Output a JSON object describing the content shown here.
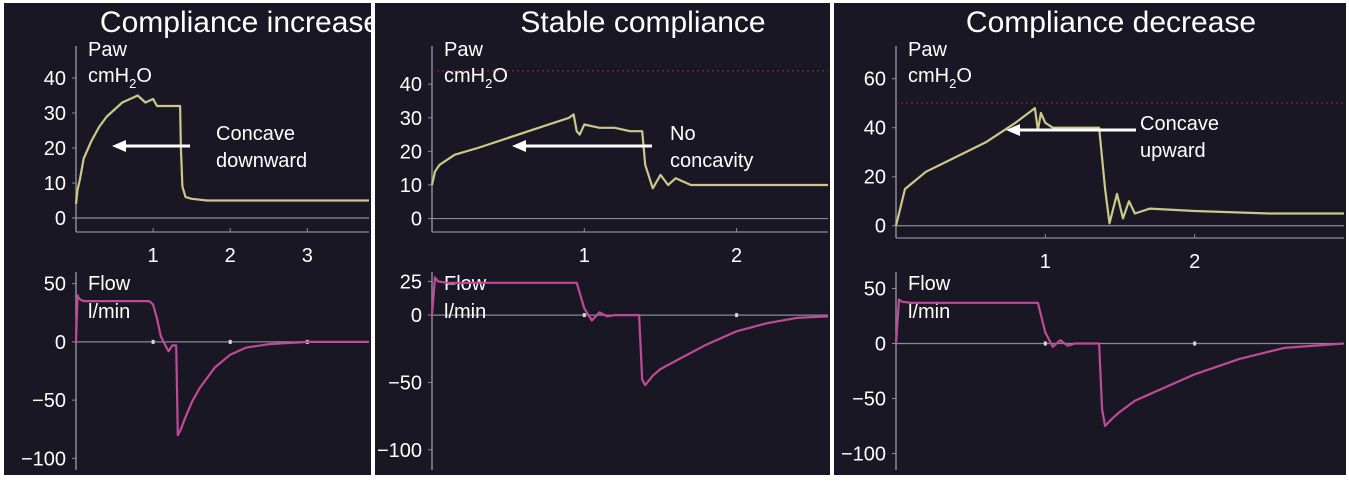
{
  "colors": {
    "background": "#1a1724",
    "text": "#ffffff",
    "paw_trace": "#c9c98a",
    "flow_trace": "#c04a9a",
    "axis_line": "#8a8a96",
    "arrow": "#ffffff",
    "limit_line": "#8a2a2a",
    "border": "#ffffff"
  },
  "chart_data": [
    {
      "type": "line",
      "title": "Compliance increase",
      "annotation": [
        "Concave",
        "downward"
      ],
      "paw": {
        "label": "Paw",
        "unit": "cmH2O",
        "ylim": [
          -4,
          44
        ],
        "yticks": [
          0,
          10,
          20,
          30,
          40
        ],
        "xlim": [
          0,
          3.8
        ],
        "xticks": [
          1,
          2,
          3
        ],
        "limit_line": null,
        "x": [
          0,
          0.02,
          0.05,
          0.1,
          0.2,
          0.3,
          0.4,
          0.5,
          0.6,
          0.7,
          0.8,
          0.9,
          1.0,
          1.05,
          1.1,
          1.15,
          1.2,
          1.25,
          1.3,
          1.35,
          1.36,
          1.38,
          1.42,
          1.5,
          1.7,
          2.0,
          2.5,
          3.0,
          3.5,
          3.8
        ],
        "y": [
          4,
          8,
          11,
          17,
          22,
          26,
          29,
          31,
          33,
          34,
          35,
          33,
          34,
          32,
          32,
          32,
          32,
          32,
          32,
          32,
          20,
          9,
          6,
          5.5,
          5,
          5,
          5,
          5,
          5,
          5
        ]
      },
      "flow": {
        "label": "Flow",
        "unit": "l/min",
        "ylim": [
          -110,
          60
        ],
        "yticks": [
          -100,
          -50,
          0,
          50
        ],
        "xlim": [
          0,
          3.8
        ],
        "x": [
          0,
          0.02,
          0.04,
          0.1,
          0.3,
          0.6,
          0.9,
          0.95,
          1.0,
          1.05,
          1.1,
          1.15,
          1.2,
          1.25,
          1.3,
          1.32,
          1.36,
          1.4,
          1.5,
          1.6,
          1.8,
          2.0,
          2.2,
          2.5,
          3.0,
          3.5,
          3.8
        ],
        "y": [
          0,
          40,
          37,
          35,
          35,
          35,
          35,
          35,
          32,
          20,
          5,
          -2,
          -8,
          -3,
          -3,
          -80,
          -75,
          -68,
          -52,
          -40,
          -22,
          -11,
          -5,
          -2,
          0,
          0,
          0
        ]
      }
    },
    {
      "type": "line",
      "title": "Stable compliance",
      "annotation": [
        "No",
        "concavity"
      ],
      "paw": {
        "label": "Paw",
        "unit": "cmH2O",
        "ylim": [
          -4,
          46
        ],
        "yticks": [
          0,
          10,
          20,
          30,
          40
        ],
        "xlim": [
          0,
          2.6
        ],
        "xticks": [
          1,
          2
        ],
        "limit_line": 44,
        "x": [
          0,
          0.02,
          0.05,
          0.15,
          0.3,
          0.5,
          0.7,
          0.9,
          0.93,
          0.95,
          0.97,
          1.0,
          1.1,
          1.2,
          1.3,
          1.38,
          1.4,
          1.45,
          1.5,
          1.55,
          1.6,
          1.7,
          1.9,
          2.2,
          2.6
        ],
        "y": [
          10,
          14,
          16,
          19,
          21,
          24,
          27,
          30,
          31,
          26,
          25,
          28,
          27,
          27,
          26,
          26,
          16,
          9,
          13,
          10,
          12,
          10,
          10,
          10,
          10
        ]
      },
      "flow": {
        "label": "Flow",
        "unit": "l/min",
        "ylim": [
          -115,
          32
        ],
        "yticks": [
          -100,
          -50,
          0,
          25
        ],
        "xlim": [
          0,
          2.6
        ],
        "x": [
          0,
          0.02,
          0.04,
          0.1,
          0.5,
          0.9,
          0.95,
          1.0,
          1.05,
          1.1,
          1.15,
          1.2,
          1.3,
          1.36,
          1.38,
          1.4,
          1.45,
          1.5,
          1.6,
          1.7,
          1.8,
          2.0,
          2.2,
          2.4,
          2.6
        ],
        "y": [
          0,
          28,
          25,
          24,
          24,
          24,
          24,
          5,
          -4,
          2,
          -1,
          0,
          0,
          0,
          -48,
          -52,
          -45,
          -40,
          -34,
          -28,
          -22,
          -12,
          -6,
          -2,
          -1
        ]
      }
    },
    {
      "type": "line",
      "title": "Compliance decrease",
      "annotation": [
        "Concave",
        "upward"
      ],
      "paw": {
        "label": "Paw",
        "unit": "cmH2O",
        "ylim": [
          -5,
          66
        ],
        "yticks": [
          0,
          20,
          40,
          60
        ],
        "xlim": [
          0,
          3.0
        ],
        "xticks": [
          1,
          2
        ],
        "limit_line": 50,
        "x": [
          0,
          0.02,
          0.04,
          0.06,
          0.1,
          0.2,
          0.4,
          0.6,
          0.8,
          0.93,
          0.95,
          0.97,
          1.0,
          1.05,
          1.1,
          1.2,
          1.3,
          1.36,
          1.4,
          1.43,
          1.48,
          1.52,
          1.56,
          1.6,
          1.7,
          2.0,
          2.5,
          3.0
        ],
        "y": [
          0,
          5,
          10,
          15,
          17,
          22,
          28,
          34,
          42,
          48,
          39,
          46,
          42,
          40,
          40,
          40,
          40,
          40,
          15,
          1,
          13,
          3,
          10,
          5,
          7,
          6,
          5,
          5
        ]
      },
      "flow": {
        "label": "Flow",
        "unit": "l/min",
        "ylim": [
          -115,
          65
        ],
        "yticks": [
          -100,
          -50,
          0,
          50
        ],
        "xlim": [
          0,
          3.0
        ],
        "x": [
          0,
          0.02,
          0.04,
          0.1,
          0.5,
          0.9,
          0.95,
          1.0,
          1.05,
          1.1,
          1.15,
          1.2,
          1.3,
          1.36,
          1.38,
          1.4,
          1.45,
          1.5,
          1.6,
          1.8,
          2.0,
          2.3,
          2.6,
          3.0
        ],
        "y": [
          0,
          40,
          38,
          37,
          37,
          37,
          37,
          10,
          -3,
          3,
          -2,
          0,
          0,
          0,
          -60,
          -75,
          -68,
          -62,
          -52,
          -40,
          -28,
          -14,
          -4,
          0
        ]
      }
    }
  ]
}
